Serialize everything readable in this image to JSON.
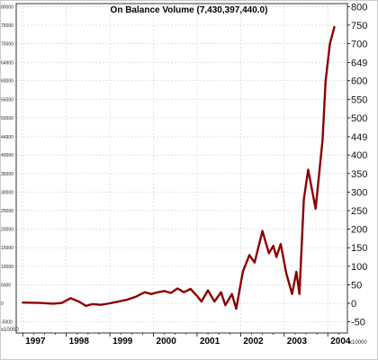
{
  "chart_data": {
    "type": "line",
    "title": "On Balance Volume (7,430,397,440.0)",
    "xlabel": "",
    "ylabel": "",
    "x_tick_labels": [
      "1997",
      "1998",
      "1999",
      "2000",
      "2001",
      "2002",
      "2003",
      "2004"
    ],
    "x_tick_years": [
      1997,
      1998,
      1999,
      2000,
      2001,
      2002,
      2003,
      2004
    ],
    "xlim": [
      1996.85,
      2004.45
    ],
    "y_ticks_right": [
      -50,
      0,
      50,
      100,
      150,
      200,
      250,
      300,
      350,
      400,
      449,
      500,
      550,
      600,
      649,
      700,
      750,
      800
    ],
    "y_ticks_left": [
      "-5000",
      "0",
      "5000",
      "10000",
      "15000",
      "20000",
      "25000",
      "30000",
      "35000",
      "40000",
      "44900",
      "50000",
      "55000",
      "60000",
      "64900",
      "70000",
      "75000",
      "80000"
    ],
    "right_unit_label": "x10000",
    "left_unit_label": "x10000",
    "ylim": [
      -80,
      808
    ],
    "grid": true,
    "line_color": "#8b0000",
    "series": [
      {
        "values": [
          [
            1997.0,
            2
          ],
          [
            1997.4,
            1
          ],
          [
            1997.7,
            -1
          ],
          [
            1997.9,
            1
          ],
          [
            1998.1,
            14
          ],
          [
            1998.3,
            4
          ],
          [
            1998.45,
            -7
          ],
          [
            1998.6,
            -2
          ],
          [
            1998.8,
            -4
          ],
          [
            1999.0,
            0
          ],
          [
            1999.2,
            5
          ],
          [
            1999.4,
            10
          ],
          [
            1999.6,
            18
          ],
          [
            1999.8,
            30
          ],
          [
            1999.95,
            25
          ],
          [
            2000.1,
            30
          ],
          [
            2000.25,
            33
          ],
          [
            2000.4,
            28
          ],
          [
            2000.55,
            40
          ],
          [
            2000.7,
            30
          ],
          [
            2000.85,
            39
          ],
          [
            2001.0,
            20
          ],
          [
            2001.1,
            5
          ],
          [
            2001.25,
            35
          ],
          [
            2001.4,
            5
          ],
          [
            2001.55,
            30
          ],
          [
            2001.65,
            -5
          ],
          [
            2001.8,
            25
          ],
          [
            2001.9,
            -15
          ],
          [
            2002.05,
            85
          ],
          [
            2002.2,
            130
          ],
          [
            2002.32,
            110
          ],
          [
            2002.5,
            195
          ],
          [
            2002.65,
            135
          ],
          [
            2002.75,
            155
          ],
          [
            2002.82,
            125
          ],
          [
            2002.92,
            160
          ],
          [
            2003.05,
            80
          ],
          [
            2003.18,
            25
          ],
          [
            2003.28,
            85
          ],
          [
            2003.35,
            25
          ],
          [
            2003.45,
            280
          ],
          [
            2003.55,
            360
          ],
          [
            2003.72,
            255
          ],
          [
            2003.88,
            440
          ],
          [
            2003.95,
            600
          ],
          [
            2004.05,
            700
          ],
          [
            2004.15,
            745
          ]
        ]
      }
    ]
  }
}
